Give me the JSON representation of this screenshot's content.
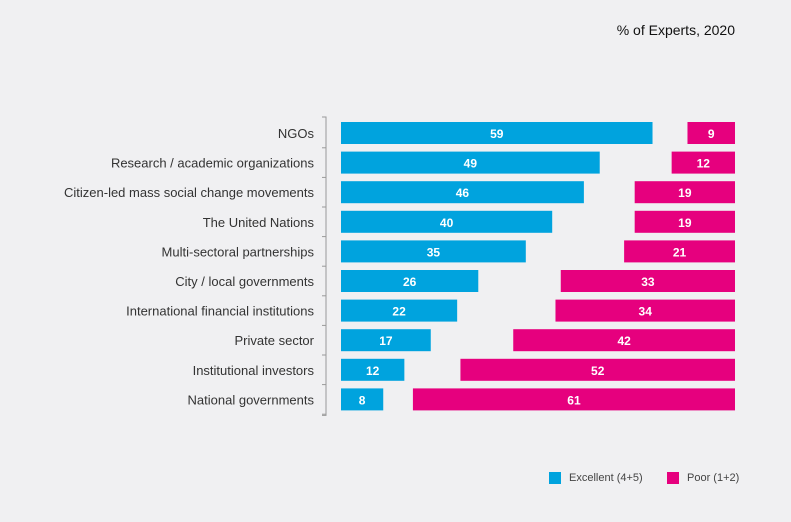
{
  "chart_data": {
    "type": "bar",
    "subtitle": "% of Experts, 2020",
    "categories": [
      "NGOs",
      "Research / academic organizations",
      "Citizen-led mass social change movements",
      "The United Nations",
      "Multi-sectoral partnerships",
      "City / local governments",
      "International financial institutions",
      "Private sector",
      "Institutional investors",
      "National governments"
    ],
    "series": [
      {
        "name": "Excellent (4+5)",
        "color": "#00a3de",
        "values": [
          59,
          49,
          46,
          40,
          35,
          26,
          22,
          17,
          12,
          8
        ]
      },
      {
        "name": "Poor (1+2)",
        "color": "#e6007e",
        "values": [
          9,
          12,
          19,
          19,
          21,
          33,
          34,
          42,
          52,
          61
        ]
      }
    ],
    "legend_position": "bottom-right",
    "grid": false
  }
}
